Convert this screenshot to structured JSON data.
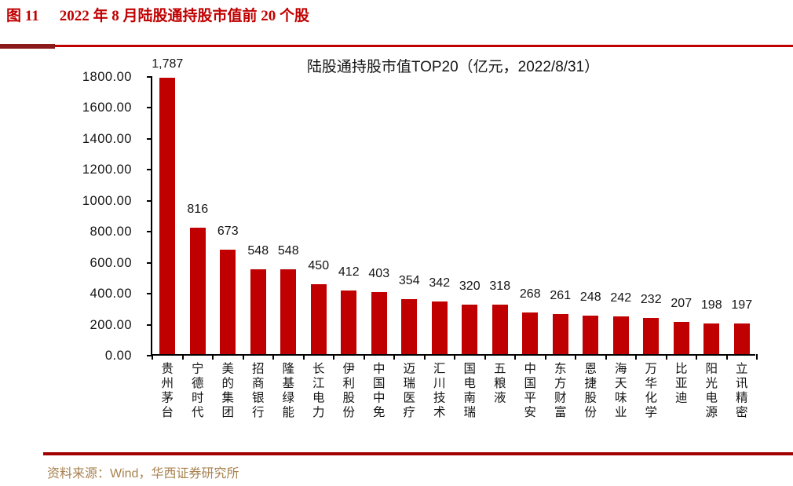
{
  "header": {
    "figure_label": "图 11",
    "figure_title": "2022 年 8 月陆股通持股市值前 20 个股"
  },
  "footer": {
    "source_note": "资料来源：Wind，华西证券研究所"
  },
  "colors": {
    "bar": "#C00000",
    "header_text": "#C00000",
    "top_rule_thin": "#C00000",
    "top_rule_block": "#8B1A1A",
    "bottom_rule": "#A00000",
    "source_text": "#A8824F",
    "axis": "#000000"
  },
  "chart_data": {
    "type": "bar",
    "title": "陆股通持股市值TOP20（亿元，2022/8/31）",
    "categories": [
      "贵州茅台",
      "宁德时代",
      "美的集团",
      "招商银行",
      "隆基绿能",
      "长江电力",
      "伊利股份",
      "中国中免",
      "迈瑞医疗",
      "汇川技术",
      "国电南瑞",
      "五粮液",
      "中国平安",
      "东方财富",
      "恩捷股份",
      "海天味业",
      "万华化学",
      "比亚迪",
      "阳光电源",
      "立讯精密"
    ],
    "values": [
      1787,
      816,
      673,
      548,
      548,
      450,
      412,
      403,
      354,
      342,
      320,
      318,
      268,
      261,
      248,
      242,
      232,
      207,
      198,
      197
    ],
    "value_labels": [
      "1,787",
      "816",
      "673",
      "548",
      "548",
      "450",
      "412",
      "403",
      "354",
      "342",
      "320",
      "318",
      "268",
      "261",
      "248",
      "242",
      "232",
      "207",
      "198",
      "197"
    ],
    "xlabel": "",
    "ylabel": "",
    "ylim": [
      0,
      1800
    ],
    "ytick_step": 200,
    "ytick_labels": [
      "1800.00",
      "1600.00",
      "1400.00",
      "1200.00",
      "1000.00",
      "800.00",
      "600.00",
      "400.00",
      "200.00",
      "0.00"
    ],
    "grid": false,
    "legend_position": "none",
    "bar_color": "#C00000"
  }
}
